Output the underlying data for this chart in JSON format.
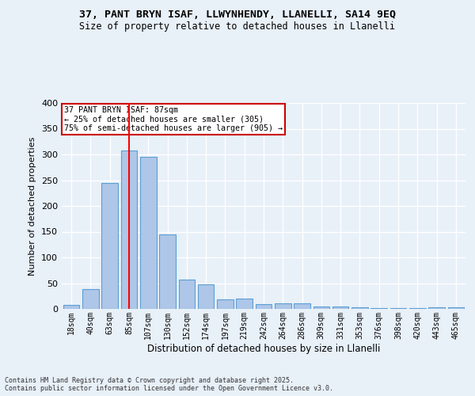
{
  "title_line1": "37, PANT BRYN ISAF, LLWYNHENDY, LLANELLI, SA14 9EQ",
  "title_line2": "Size of property relative to detached houses in Llanelli",
  "xlabel": "Distribution of detached houses by size in Llanelli",
  "ylabel": "Number of detached properties",
  "categories": [
    "18sqm",
    "40sqm",
    "63sqm",
    "85sqm",
    "107sqm",
    "130sqm",
    "152sqm",
    "174sqm",
    "197sqm",
    "219sqm",
    "242sqm",
    "264sqm",
    "286sqm",
    "309sqm",
    "331sqm",
    "353sqm",
    "376sqm",
    "398sqm",
    "420sqm",
    "443sqm",
    "465sqm"
  ],
  "values": [
    8,
    38,
    245,
    307,
    295,
    145,
    57,
    48,
    19,
    20,
    10,
    11,
    11,
    5,
    4,
    3,
    2,
    1,
    1,
    3,
    3
  ],
  "bar_color": "#aec6e8",
  "bar_edge_color": "#5a9fd4",
  "red_line_index": 3,
  "red_line_label": "37 PANT BRYN ISAF: 87sqm",
  "annotation_line2": "← 25% of detached houses are smaller (305)",
  "annotation_line3": "75% of semi-detached houses are larger (905) →",
  "annotation_box_color": "#ffffff",
  "annotation_box_edge_color": "#cc0000",
  "ylim": [
    0,
    400
  ],
  "yticks": [
    0,
    50,
    100,
    150,
    200,
    250,
    300,
    350,
    400
  ],
  "background_color": "#e8f0f8",
  "grid_color": "#ffffff",
  "footer_line1": "Contains HM Land Registry data © Crown copyright and database right 2025.",
  "footer_line2": "Contains public sector information licensed under the Open Government Licence v3.0."
}
